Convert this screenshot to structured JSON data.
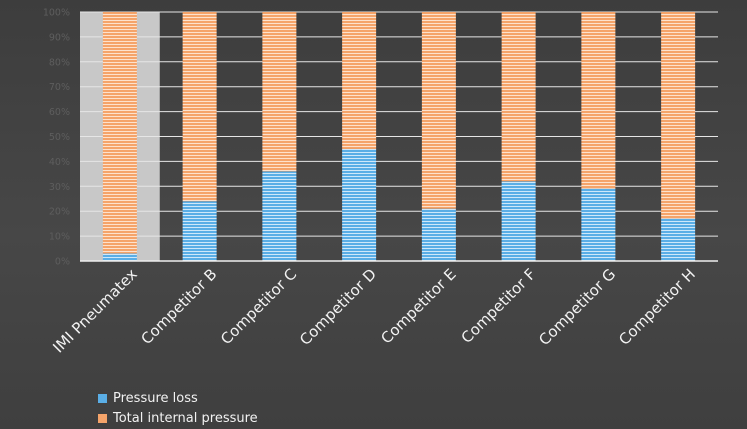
{
  "chart_data": {
    "type": "bar",
    "stacked": true,
    "percent": true,
    "categories": [
      "IMI Pneumatex",
      "Competitor B",
      "Competitor C",
      "Competitor D",
      "Competitor E",
      "Competitor F",
      "Competitor G",
      "Competitor H"
    ],
    "series": [
      {
        "name": "Pressure loss",
        "color": "#5aaee6",
        "values": [
          3,
          24,
          36,
          45,
          21,
          32,
          29,
          17
        ]
      },
      {
        "name": "Total internal pressure",
        "color": "#f5a46a",
        "values": [
          97,
          76,
          64,
          55,
          79,
          68,
          71,
          83
        ]
      }
    ],
    "y_ticks": [
      "0%",
      "10%",
      "20%",
      "30%",
      "40%",
      "50%",
      "60%",
      "70%",
      "80%",
      "90%",
      "100%"
    ],
    "ylim": [
      0,
      100
    ],
    "highlight_category": "IMI Pneumatex",
    "highlight_color": "#c8c8c8",
    "grid": true,
    "legend_position": "bottom-left"
  }
}
